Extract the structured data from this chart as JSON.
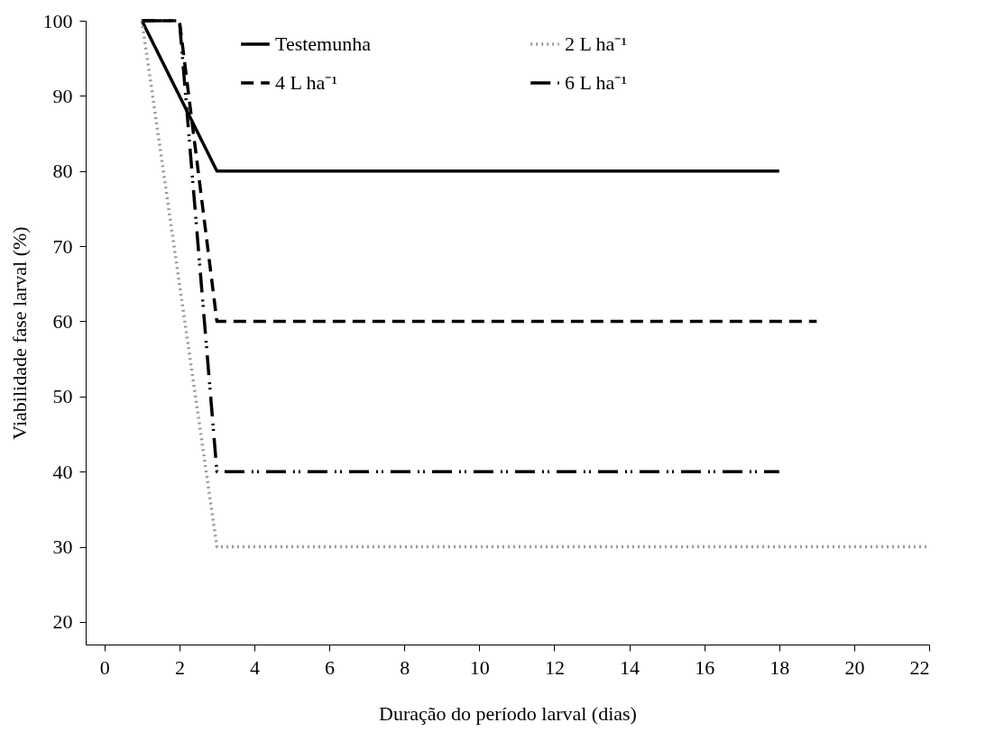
{
  "chart_data": {
    "type": "line",
    "xlabel": "Duração do período larval (dias)",
    "ylabel": "Viabilidade fase larval (%)",
    "xlim": [
      -0.5,
      22
    ],
    "xticks": [
      0,
      2,
      4,
      6,
      8,
      10,
      12,
      14,
      16,
      18,
      20,
      22
    ],
    "ylim": [
      17,
      100
    ],
    "yticks": [
      20,
      30,
      40,
      50,
      60,
      70,
      80,
      90,
      100
    ],
    "grid": false,
    "legend": "top",
    "marker": "none",
    "series": [
      {
        "name": "Testemunha",
        "color": "#000000",
        "line_style": "solid",
        "x": [
          1,
          3,
          18
        ],
        "values": [
          100,
          80,
          80
        ]
      },
      {
        "name": "4 L ha⁻¹",
        "color": "#000000",
        "line_style": "dashed",
        "x": [
          1,
          2,
          3,
          19
        ],
        "values": [
          100,
          100,
          60,
          60
        ]
      },
      {
        "name": "2 L ha⁻¹",
        "color": "#999999",
        "line_style": "dotted",
        "x": [
          1,
          3,
          22
        ],
        "values": [
          100,
          30,
          30
        ]
      },
      {
        "name": "6 L ha⁻¹",
        "color": "#000000",
        "line_style": "dashdot",
        "x": [
          1,
          2,
          3,
          18
        ],
        "values": [
          100,
          100,
          40,
          40
        ]
      }
    ]
  }
}
